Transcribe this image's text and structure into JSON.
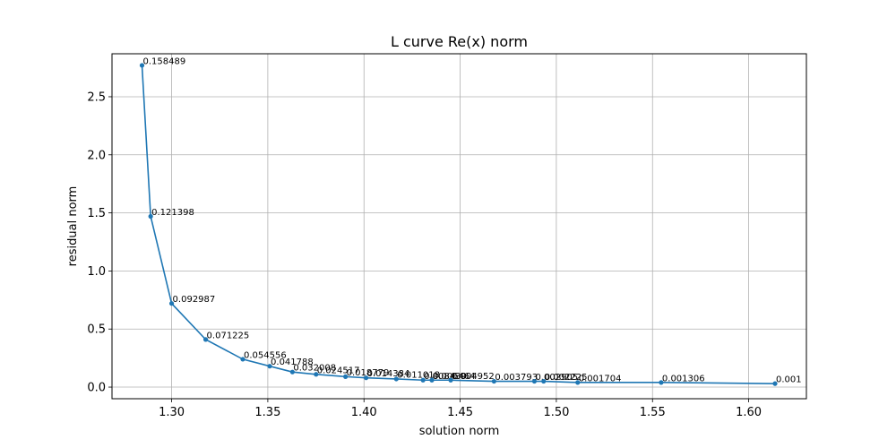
{
  "chart_data": {
    "type": "line",
    "title": "L curve Re(x) norm",
    "xlabel": "solution norm",
    "ylabel": "residual norm",
    "xlim": [
      1.269,
      1.63
    ],
    "ylim": [
      -0.1,
      2.87
    ],
    "grid": true,
    "xticks": [
      1.3,
      1.35,
      1.4,
      1.45,
      1.5,
      1.55,
      1.6
    ],
    "xtick_labels": [
      "1.30",
      "1.35",
      "1.40",
      "1.45",
      "1.50",
      "1.55",
      "1.60"
    ],
    "yticks": [
      0.0,
      0.5,
      1.0,
      1.5,
      2.0,
      2.5
    ],
    "ytick_labels": [
      "0.0",
      "0.5",
      "1.0",
      "1.5",
      "2.0",
      "2.5"
    ],
    "color": "#1f77b4",
    "points": [
      {
        "x": 1.2846,
        "y": 2.77,
        "label": "0.158489"
      },
      {
        "x": 1.2891,
        "y": 1.47,
        "label": "0.121398"
      },
      {
        "x": 1.3,
        "y": 0.72,
        "label": "0.092987"
      },
      {
        "x": 1.3177,
        "y": 0.41,
        "label": "0.071225"
      },
      {
        "x": 1.337,
        "y": 0.24,
        "label": "0.054556"
      },
      {
        "x": 1.351,
        "y": 0.18,
        "label": "0.041788"
      },
      {
        "x": 1.3628,
        "y": 0.13,
        "label": "0.032008"
      },
      {
        "x": 1.3751,
        "y": 0.11,
        "label": "0.024517"
      },
      {
        "x": 1.3904,
        "y": 0.09,
        "label": "0.018779"
      },
      {
        "x": 1.4011,
        "y": 0.08,
        "label": "0.014384"
      },
      {
        "x": 1.4168,
        "y": 0.07,
        "label": "0.011018"
      },
      {
        "x": 1.4307,
        "y": 0.06,
        "label": "0.008439"
      },
      {
        "x": 1.4353,
        "y": 0.06,
        "label": "0.006464"
      },
      {
        "x": 1.4451,
        "y": 0.06,
        "label": "0.004952"
      },
      {
        "x": 1.4676,
        "y": 0.05,
        "label": "0.003793"
      },
      {
        "x": 1.4886,
        "y": 0.05,
        "label": "0.002905"
      },
      {
        "x": 1.4934,
        "y": 0.05,
        "label": "0.002225"
      },
      {
        "x": 1.5111,
        "y": 0.04,
        "label": "0.001704"
      },
      {
        "x": 1.5545,
        "y": 0.04,
        "label": "0.001306"
      },
      {
        "x": 1.6137,
        "y": 0.03,
        "label": "0.001"
      }
    ]
  }
}
